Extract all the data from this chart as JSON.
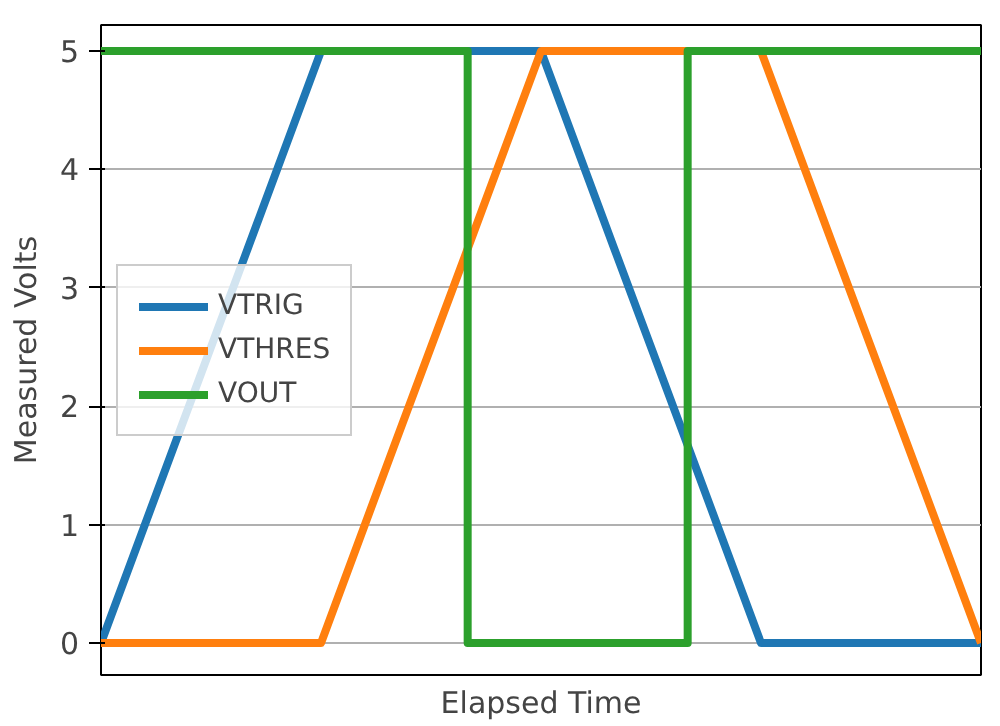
{
  "chart_data": {
    "type": "line",
    "xlabel": "Elapsed Time",
    "ylabel": "Measured Volts",
    "categories": [
      null,
      null,
      null,
      null,
      null,
      null,
      null,
      null,
      null,
      null,
      null,
      null,
      null
    ],
    "series": [
      {
        "name": "VTRIG",
        "color": "#1f77b4",
        "values": [
          0,
          1.67,
          3.33,
          5,
          5,
          5,
          5,
          3.33,
          1.67,
          0,
          0,
          0,
          0
        ]
      },
      {
        "name": "VTHRES",
        "color": "#ff7f0e",
        "values": [
          0,
          0,
          0,
          0,
          1.67,
          3.33,
          5,
          5,
          5,
          5,
          3.33,
          1.67,
          0
        ]
      },
      {
        "name": "VOUT",
        "color": "#2ca02c",
        "type": "step",
        "values": [
          5,
          5,
          5,
          5,
          5,
          0,
          0,
          0,
          5,
          5,
          5,
          5,
          5
        ]
      }
    ],
    "ylim": [
      -0.27,
      5.22
    ],
    "yticks": [
      0,
      1,
      2,
      3,
      4,
      5
    ],
    "grid": "y",
    "legend": "center left",
    "tick_labels": "y"
  }
}
